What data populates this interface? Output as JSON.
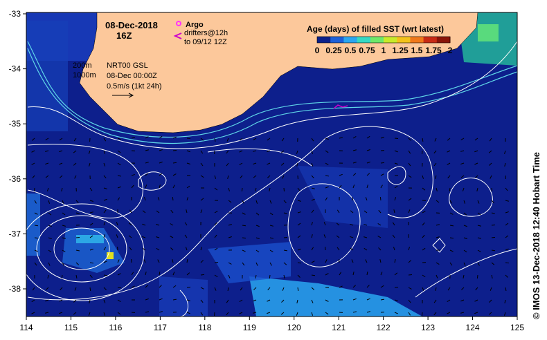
{
  "title": {
    "date": "08-Dec-2018",
    "hour": "16Z"
  },
  "legend": {
    "argo_label": "Argo",
    "drifters_line1": "drifters@12h",
    "drifters_line2": "to 09/12 12Z",
    "argo_color": "#ff33ff",
    "drifter_color": "#cc00cc"
  },
  "colorbar": {
    "title": "Age (days) of filled SST (wrt latest)",
    "ticks": [
      "0",
      "0.25",
      "0.5",
      "0.75",
      "1",
      "1.25",
      "1.5",
      "1.75",
      "2"
    ],
    "colors": [
      "#0a1f8a",
      "#1b5fd8",
      "#2aa6f0",
      "#35d9c4",
      "#6ee86a",
      "#c8ea2a",
      "#f3c21a",
      "#f0781a",
      "#c82a14",
      "#8a1408"
    ]
  },
  "isobaths": {
    "shallow": "200m",
    "deep": "1000m"
  },
  "product": {
    "name": "NRT00 GSL",
    "time": "08-Dec 00:00Z",
    "scale": "0.5m/s (1kt 24h)"
  },
  "colors": {
    "ocean": "#0d1f8c",
    "land": "#fcc89b",
    "contour": "#ffffff",
    "isobath": "#5fd6e8",
    "warm_patch": "#2aa6f0",
    "anomaly": "#e0e020"
  },
  "axes": {
    "lon_ticks": [
      "114",
      "115",
      "116",
      "117",
      "118",
      "119",
      "120",
      "121",
      "122",
      "123",
      "124",
      "125"
    ],
    "lat_ticks": [
      "-33",
      "-34",
      "-35",
      "-36",
      "-37",
      "-38"
    ]
  },
  "credit": "© IMOS 13-Dec-2018 12:40 Hobart Time"
}
